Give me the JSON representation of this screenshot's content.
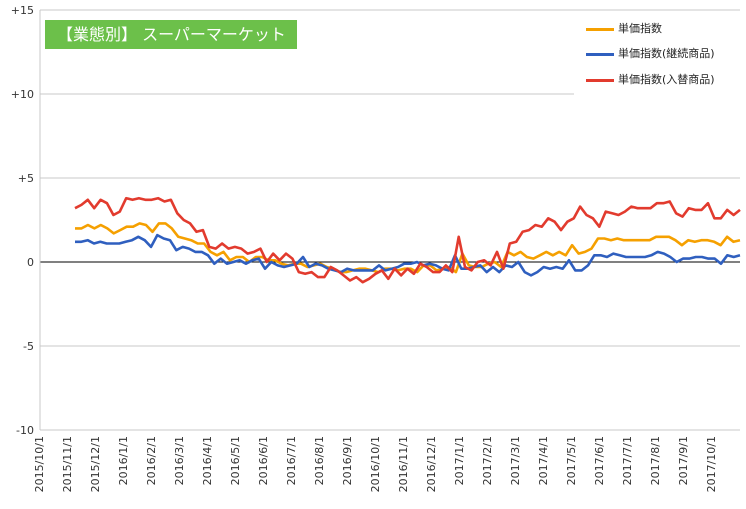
{
  "chart_data": {
    "type": "line",
    "title": "【業態別】 スーパーマーケット",
    "ylim": [
      -10,
      15
    ],
    "yticks": [
      "-10",
      "-5",
      "0",
      "+5",
      "+10",
      "+15"
    ],
    "ytick_values": [
      -10,
      -5,
      0,
      5,
      10,
      15
    ],
    "xtick_labels": [
      "2015/10/1",
      "2015/11/1",
      "2015/12/1",
      "2016/1/1",
      "2016/2/1",
      "2016/3/1",
      "2016/4/1",
      "2016/5/1",
      "2016/6/1",
      "2016/7/1",
      "2016/8/1",
      "2016/9/1",
      "2016/10/1",
      "2016/11/1",
      "2016/12/1",
      "2017/1/1",
      "2017/2/1",
      "2017/3/1",
      "2017/4/1",
      "2017/5/1",
      "2017/6/1",
      "2017/7/1",
      "2017/8/1",
      "2017/9/1",
      "2017/10/1"
    ],
    "grid": "horizontal",
    "legend_position": "top-right",
    "series": [
      {
        "name": "単価指数",
        "color": "#f5a000",
        "values": [
          2.0,
          2.0,
          2.2,
          2.0,
          2.2,
          2.0,
          1.7,
          1.9,
          2.1,
          2.1,
          2.3,
          2.2,
          1.8,
          2.3,
          2.3,
          2.0,
          1.5,
          1.4,
          1.3,
          1.1,
          1.1,
          0.6,
          0.4,
          0.6,
          0.1,
          0.3,
          0.3,
          0.0,
          0.3,
          0.3,
          0.1,
          0.1,
          -0.1,
          -0.2,
          -0.1,
          -0.1,
          -0.3,
          -0.2,
          -0.1,
          -0.3,
          -0.4,
          -0.6,
          -0.6,
          -0.5,
          -0.4,
          -0.4,
          -0.5,
          -0.6,
          -0.4,
          -0.4,
          -0.5,
          -0.4,
          -0.4,
          -0.6,
          -0.2,
          -0.2,
          -0.5,
          -0.4,
          -0.3,
          -0.6,
          0.5,
          -0.2,
          -0.3,
          -0.3,
          -0.1,
          0.0,
          -0.3,
          0.6,
          0.4,
          0.6,
          0.3,
          0.2,
          0.4,
          0.6,
          0.4,
          0.6,
          0.4,
          1.0,
          0.5,
          0.6,
          0.8,
          1.4,
          1.4,
          1.3,
          1.4,
          1.3,
          1.3,
          1.3,
          1.3,
          1.3,
          1.5,
          1.5,
          1.5,
          1.3,
          1.0,
          1.3,
          1.2,
          1.3,
          1.3,
          1.2,
          1.0,
          1.5,
          1.2,
          1.3
        ]
      },
      {
        "name": "単価指数(継続商品)",
        "color": "#2f5fbf",
        "values": [
          1.2,
          1.2,
          1.3,
          1.1,
          1.2,
          1.1,
          1.1,
          1.1,
          1.2,
          1.3,
          1.5,
          1.3,
          0.9,
          1.6,
          1.4,
          1.3,
          0.7,
          0.9,
          0.8,
          0.6,
          0.6,
          0.4,
          -0.1,
          0.2,
          -0.1,
          0.0,
          0.1,
          -0.1,
          0.1,
          0.2,
          -0.4,
          0.0,
          -0.2,
          -0.3,
          -0.2,
          -0.1,
          0.3,
          -0.3,
          -0.1,
          -0.2,
          -0.4,
          -0.5,
          -0.6,
          -0.4,
          -0.5,
          -0.5,
          -0.5,
          -0.5,
          -0.2,
          -0.5,
          -0.4,
          -0.3,
          -0.1,
          -0.1,
          0.0,
          -0.2,
          -0.1,
          -0.2,
          -0.4,
          -0.5,
          0.4,
          -0.4,
          -0.4,
          -0.3,
          -0.2,
          -0.6,
          -0.3,
          -0.6,
          -0.2,
          -0.3,
          0.0,
          -0.6,
          -0.8,
          -0.6,
          -0.3,
          -0.4,
          -0.3,
          -0.4,
          0.1,
          -0.5,
          -0.5,
          -0.2,
          0.4,
          0.4,
          0.3,
          0.5,
          0.4,
          0.3,
          0.3,
          0.3,
          0.3,
          0.4,
          0.6,
          0.5,
          0.3,
          0.0,
          0.2,
          0.2,
          0.3,
          0.3,
          0.2,
          0.2,
          -0.1,
          0.4,
          0.3,
          0.4
        ]
      },
      {
        "name": "単価指数(入替商品)",
        "color": "#e23b2e",
        "values": [
          3.2,
          3.4,
          3.7,
          3.2,
          3.7,
          3.5,
          2.8,
          3.0,
          3.8,
          3.7,
          3.8,
          3.7,
          3.7,
          3.8,
          3.6,
          3.7,
          2.9,
          2.5,
          2.3,
          1.8,
          1.9,
          0.9,
          0.8,
          1.1,
          0.8,
          0.9,
          0.8,
          0.5,
          0.6,
          0.8,
          0.0,
          0.5,
          0.1,
          0.5,
          0.2,
          -0.6,
          -0.7,
          -0.6,
          -0.9,
          -0.9,
          -0.3,
          -0.5,
          -0.8,
          -1.1,
          -0.9,
          -1.2,
          -1.0,
          -0.7,
          -0.5,
          -1.0,
          -0.4,
          -0.8,
          -0.4,
          -0.7,
          -0.1,
          -0.3,
          -0.6,
          -0.6,
          -0.2,
          -0.6,
          1.5,
          -0.3,
          -0.5,
          0.0,
          0.1,
          -0.2,
          0.6,
          -0.4,
          1.1,
          1.2,
          1.8,
          1.9,
          2.2,
          2.1,
          2.6,
          2.4,
          1.9,
          2.4,
          2.6,
          3.3,
          2.8,
          2.6,
          2.1,
          3.0,
          2.9,
          2.8,
          3.0,
          3.3,
          3.2,
          3.2,
          3.2,
          3.5,
          3.5,
          3.6,
          2.9,
          2.7,
          3.2,
          3.1,
          3.1,
          3.5,
          2.6,
          2.6,
          3.1,
          2.8,
          3.1
        ]
      }
    ]
  }
}
